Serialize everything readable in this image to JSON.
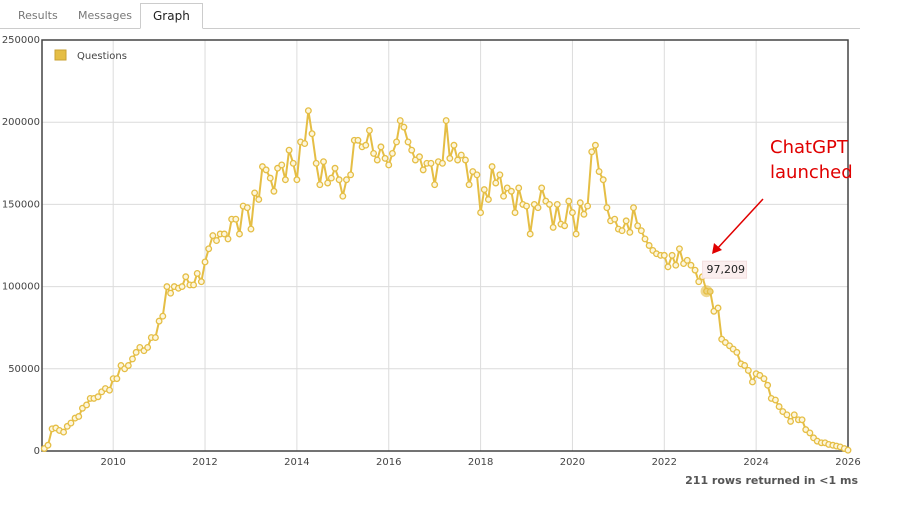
{
  "tabs": [
    "Results",
    "Messages",
    "Graph"
  ],
  "footer": "211 rows returned in <1 ms",
  "chart_data": {
    "type": "line",
    "series": [
      {
        "name": "Questions",
        "color": "#e5be45",
        "x": [
          2008.5,
          2008.58,
          2008.67,
          2008.75,
          2008.83,
          2008.92,
          2009,
          2009.08,
          2009.17,
          2009.25,
          2009.33,
          2009.42,
          2009.5,
          2009.58,
          2009.67,
          2009.75,
          2009.83,
          2009.92,
          2010,
          2010.08,
          2010.17,
          2010.25,
          2010.33,
          2010.42,
          2010.5,
          2010.58,
          2010.67,
          2010.75,
          2010.83,
          2010.92,
          2011,
          2011.08,
          2011.17,
          2011.25,
          2011.33,
          2011.42,
          2011.5,
          2011.58,
          2011.67,
          2011.75,
          2011.83,
          2011.92,
          2012,
          2012.08,
          2012.17,
          2012.25,
          2012.33,
          2012.42,
          2012.5,
          2012.58,
          2012.67,
          2012.75,
          2012.83,
          2012.92,
          2013,
          2013.08,
          2013.17,
          2013.25,
          2013.33,
          2013.42,
          2013.5,
          2013.58,
          2013.67,
          2013.75,
          2013.83,
          2013.92,
          2014,
          2014.08,
          2014.17,
          2014.25,
          2014.33,
          2014.42,
          2014.5,
          2014.58,
          2014.67,
          2014.75,
          2014.83,
          2014.92,
          2015,
          2015.08,
          2015.17,
          2015.25,
          2015.33,
          2015.42,
          2015.5,
          2015.58,
          2015.67,
          2015.75,
          2015.83,
          2015.92,
          2016,
          2016.08,
          2016.17,
          2016.25,
          2016.33,
          2016.42,
          2016.5,
          2016.58,
          2016.67,
          2016.75,
          2016.83,
          2016.92,
          2017,
          2017.08,
          2017.17,
          2017.25,
          2017.33,
          2017.42,
          2017.5,
          2017.58,
          2017.67,
          2017.75,
          2017.83,
          2017.92,
          2018,
          2018.08,
          2018.17,
          2018.25,
          2018.33,
          2018.42,
          2018.5,
          2018.58,
          2018.67,
          2018.75,
          2018.83,
          2018.92,
          2019,
          2019.08,
          2019.17,
          2019.25,
          2019.33,
          2019.42,
          2019.5,
          2019.58,
          2019.67,
          2019.75,
          2019.83,
          2019.92,
          2020,
          2020.08,
          2020.17,
          2020.25,
          2020.33,
          2020.42,
          2020.5,
          2020.58,
          2020.67,
          2020.75,
          2020.83,
          2020.92,
          2021,
          2021.08,
          2021.17,
          2021.25,
          2021.33,
          2021.42,
          2021.5,
          2021.58,
          2021.67,
          2021.75,
          2021.83,
          2021.92,
          2022,
          2022.08,
          2022.17,
          2022.25,
          2022.33,
          2022.42,
          2022.5,
          2022.58,
          2022.67,
          2022.75,
          2022.83,
          2022.92,
          2023,
          2023.08,
          2023.17,
          2023.25,
          2023.33,
          2023.42,
          2023.5,
          2023.58,
          2023.67,
          2023.75,
          2023.83,
          2023.92,
          2024,
          2024.08,
          2024.17,
          2024.25,
          2024.33,
          2024.42,
          2024.5,
          2024.58,
          2024.67,
          2024.75,
          2024.83,
          2024.92,
          2025,
          2025.08,
          2025.17,
          2025.25,
          2025.33,
          2025.42,
          2025.5,
          2025.58,
          2025.67,
          2025.75,
          2025.83,
          2025.92,
          2026
        ],
        "values": [
          1500,
          3500,
          13500,
          14000,
          12500,
          11500,
          15000,
          17000,
          20000,
          21000,
          26000,
          28000,
          32000,
          32000,
          33000,
          36000,
          38000,
          37000,
          44000,
          44000,
          52000,
          50000,
          52000,
          56000,
          60000,
          63000,
          61000,
          63000,
          69000,
          69000,
          79000,
          82000,
          100000,
          96000,
          100000,
          99000,
          100000,
          106000,
          101000,
          101000,
          108000,
          103000,
          115000,
          123000,
          131000,
          128000,
          132000,
          132000,
          129000,
          141000,
          141000,
          132000,
          149000,
          148000,
          135000,
          157000,
          153000,
          173000,
          171000,
          166000,
          158000,
          172000,
          174000,
          165000,
          183000,
          175000,
          165000,
          188000,
          187000,
          207000,
          193000,
          175000,
          162000,
          176000,
          163000,
          166000,
          172000,
          165000,
          155000,
          165000,
          168000,
          189000,
          189000,
          185000,
          186000,
          195000,
          181000,
          177000,
          185000,
          178000,
          174000,
          181000,
          188000,
          201000,
          197000,
          188000,
          183000,
          177000,
          179000,
          171000,
          175000,
          175000,
          162000,
          176000,
          175000,
          201000,
          178000,
          186000,
          177000,
          180000,
          177000,
          162000,
          170000,
          168000,
          145000,
          159000,
          153000,
          173000,
          163000,
          168000,
          155000,
          160000,
          158000,
          145000,
          160000,
          150000,
          149000,
          132000,
          150000,
          148000,
          160000,
          152000,
          150000,
          136000,
          150000,
          138000,
          137000,
          152000,
          145000,
          132000,
          151000,
          144000,
          149000,
          182000,
          186000,
          170000,
          165000,
          148000,
          140000,
          141000,
          135000,
          134000,
          140000,
          133000,
          148000,
          137000,
          134000,
          129000,
          125000,
          122000,
          120000,
          119000,
          119000,
          112000,
          119000,
          113000,
          123000,
          114000,
          116000,
          113000,
          110000,
          103000,
          106000,
          97209,
          97000,
          85000,
          87000,
          68000,
          66000,
          64000,
          62000,
          60000,
          53000,
          52000,
          49000,
          42000,
          47000,
          46000,
          44000,
          40000,
          32000,
          31000,
          27000,
          24000,
          22000,
          18000,
          22000,
          19000,
          19000,
          13000,
          11000,
          8000,
          6000,
          5000,
          5000,
          4000,
          3500,
          3000,
          2500,
          1500,
          500
        ]
      }
    ],
    "tooltip": {
      "x": 2022.92,
      "y": 97209,
      "label": "97,209"
    },
    "annotation": [
      "ChatGPT",
      "launched"
    ],
    "annotation_color": "#e00000",
    "xlim": [
      2008.45,
      2026
    ],
    "xticks": [
      2010,
      2012,
      2014,
      2016,
      2018,
      2020,
      2022,
      2024,
      2026
    ],
    "ylim": [
      0,
      250000
    ],
    "yticks": [
      0,
      50000,
      100000,
      150000,
      200000,
      250000
    ],
    "grid": true,
    "legend": "top-left"
  }
}
